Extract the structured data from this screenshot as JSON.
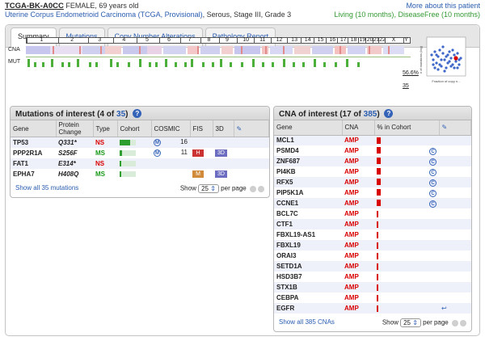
{
  "header": {
    "patient_id": "TCGA-BK-A0CC",
    "patient_meta": "FEMALE, 69 years old",
    "more_link": "More about this patient",
    "study_link": "Uterine Corpus Endometrioid Carcinoma (TCGA, Provisional)",
    "study_meta": ", Serous, Stage III, Grade 3",
    "status_living": "Living (10 months)",
    "status_sep": ", ",
    "status_disease": "DiseaseFree (10 months)"
  },
  "tabs": [
    "Summary",
    "Mutations",
    "Copy Number Alterations",
    "Pathology Report"
  ],
  "genome": {
    "chromosomes": [
      "1",
      "2",
      "3",
      "4",
      "5",
      "6",
      "7",
      "8",
      "9",
      "10",
      "11",
      "12",
      "13",
      "14",
      "15",
      "16",
      "17",
      "18",
      "19",
      "20",
      "21",
      "22",
      "X",
      "Y"
    ],
    "cna_label": "CNA",
    "mut_label": "MUT",
    "cna_percent": "56.6%",
    "mut_count": "35",
    "scatter_ylabel": "# of mutations (log)",
    "scatter_xlabel": "Fraction of copy n..."
  },
  "mutations": {
    "title": "Mutations of interest",
    "count_prefix": "(4 of ",
    "count_total": "35",
    "count_suffix": ")",
    "help": "?",
    "columns": [
      "Gene",
      "Protein Change",
      "Type",
      "Cohort",
      "COSMIC",
      "FIS",
      "3D",
      "✎"
    ],
    "rows": [
      {
        "gene": "TP53",
        "protein": "Q331*",
        "type": "NS",
        "type_color": "#d90000",
        "cohort_fraction": 0.65,
        "mutassessor": "M",
        "cosmic": "16",
        "fis": "",
        "fis_color": "",
        "three_d": ""
      },
      {
        "gene": "PPP2R1A",
        "protein": "S256F",
        "type": "MS",
        "type_color": "#1a9a1a",
        "cohort_fraction": 0.15,
        "mutassessor": "M",
        "cosmic": "11",
        "fis": "H",
        "fis_color": "#cc3333",
        "three_d": "3D"
      },
      {
        "gene": "FAT1",
        "protein": "E314*",
        "type": "NS",
        "type_color": "#d90000",
        "cohort_fraction": 0.12,
        "mutassessor": "",
        "cosmic": "",
        "fis": "",
        "fis_color": "",
        "three_d": ""
      },
      {
        "gene": "EPHA7",
        "protein": "H408Q",
        "type": "MS",
        "type_color": "#1a9a1a",
        "cohort_fraction": 0.12,
        "mutassessor": "",
        "cosmic": "",
        "fis": "M",
        "fis_color": "#d08a3a",
        "three_d": "3D"
      }
    ],
    "show_all": "Show all 35 mutations",
    "show_label": "Show",
    "page_size": "25",
    "per_page": "per page"
  },
  "cna": {
    "title": "CNA of interest",
    "count_prefix": "(17 of ",
    "count_total": "385",
    "count_suffix": ")",
    "help": "?",
    "columns": [
      "Gene",
      "CNA",
      "% in Cohort",
      "✎"
    ],
    "rows": [
      {
        "gene": "MCL1",
        "cna": "AMP",
        "cohort_fraction": 0.1,
        "badge": false,
        "edit": false
      },
      {
        "gene": "PSMD4",
        "cna": "AMP",
        "cohort_fraction": 0.09,
        "badge": true,
        "edit": false
      },
      {
        "gene": "ZNF687",
        "cna": "AMP",
        "cohort_fraction": 0.09,
        "badge": true,
        "edit": false
      },
      {
        "gene": "PI4KB",
        "cna": "AMP",
        "cohort_fraction": 0.09,
        "badge": true,
        "edit": false
      },
      {
        "gene": "RFX5",
        "cna": "AMP",
        "cohort_fraction": 0.09,
        "badge": true,
        "edit": false
      },
      {
        "gene": "PIP5K1A",
        "cna": "AMP",
        "cohort_fraction": 0.09,
        "badge": true,
        "edit": false
      },
      {
        "gene": "CCNE1",
        "cna": "AMP",
        "cohort_fraction": 0.1,
        "badge": true,
        "edit": false
      },
      {
        "gene": "BCL7C",
        "cna": "AMP",
        "cohort_fraction": 0.04,
        "badge": false,
        "edit": false
      },
      {
        "gene": "CTF1",
        "cna": "AMP",
        "cohort_fraction": 0.04,
        "badge": false,
        "edit": false
      },
      {
        "gene": "FBXL19-AS1",
        "cna": "AMP",
        "cohort_fraction": 0.04,
        "badge": false,
        "edit": false
      },
      {
        "gene": "FBXL19",
        "cna": "AMP",
        "cohort_fraction": 0.04,
        "badge": false,
        "edit": false
      },
      {
        "gene": "ORAI3",
        "cna": "AMP",
        "cohort_fraction": 0.04,
        "badge": false,
        "edit": false
      },
      {
        "gene": "SETD1A",
        "cna": "AMP",
        "cohort_fraction": 0.04,
        "badge": false,
        "edit": false
      },
      {
        "gene": "HSD3B7",
        "cna": "AMP",
        "cohort_fraction": 0.04,
        "badge": false,
        "edit": false
      },
      {
        "gene": "STX1B",
        "cna": "AMP",
        "cohort_fraction": 0.04,
        "badge": false,
        "edit": false
      },
      {
        "gene": "CEBPA",
        "cna": "AMP",
        "cohort_fraction": 0.02,
        "badge": false,
        "edit": false
      },
      {
        "gene": "EGFR",
        "cna": "AMP",
        "cohort_fraction": 0.02,
        "badge": false,
        "edit": true
      }
    ],
    "show_all": "Show all 385 CNAs",
    "show_label": "Show",
    "page_size": "25",
    "per_page": "per page"
  },
  "colors": {
    "link": "#2a5db0",
    "amp": "#d90000",
    "missense": "#1a9a1a",
    "nonsense": "#d90000",
    "cohort_bar": "#2e9e2e",
    "cna_bar": "#d90000",
    "row_alt": "#eef0fa"
  }
}
